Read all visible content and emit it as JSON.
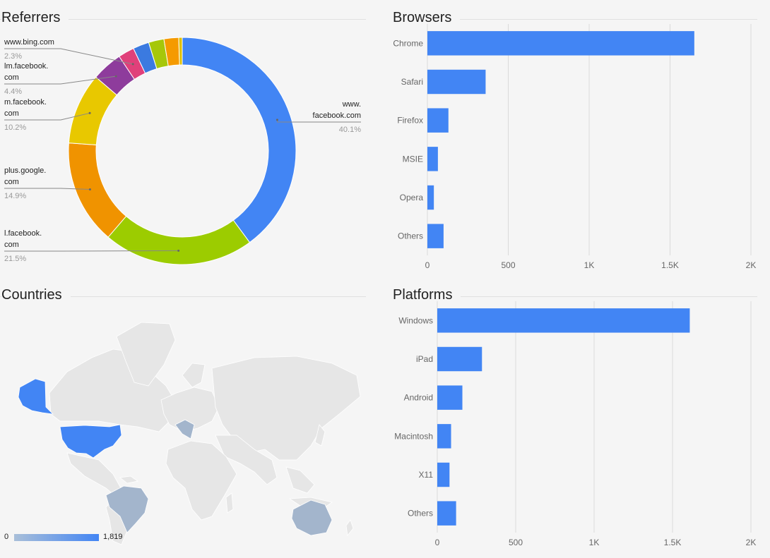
{
  "panels": {
    "referrers": {
      "title": "Referrers"
    },
    "browsers": {
      "title": "Browsers"
    },
    "countries": {
      "title": "Countries"
    },
    "platforms": {
      "title": "Platforms"
    }
  },
  "colors": {
    "bar": "#4285f4",
    "grid": "#dadada",
    "axis_text": "#666666"
  },
  "chart_data": [
    {
      "id": "referrers",
      "type": "pie",
      "title": "Referrers",
      "donut": true,
      "labels": [
        {
          "lines": [
            "www.bing.com"
          ],
          "pct": "2.3%"
        },
        {
          "lines": [
            "lm.facebook.",
            "com"
          ],
          "pct": "4.4%"
        },
        {
          "lines": [
            "m.facebook.",
            "com"
          ],
          "pct": "10.2%"
        },
        {
          "lines": [
            "plus.google.",
            "com"
          ],
          "pct": "14.9%"
        },
        {
          "lines": [
            "l.facebook.",
            "com"
          ],
          "pct": "21.5%"
        },
        {
          "lines": [
            "www.",
            "facebook.com"
          ],
          "pct": "40.1%"
        }
      ],
      "slices": [
        {
          "name": "www.facebook.com",
          "value": 40.1,
          "color": "#4285f4"
        },
        {
          "name": "l.facebook.com",
          "value": 21.5,
          "color": "#9ccc00"
        },
        {
          "name": "plus.google.com",
          "value": 14.9,
          "color": "#f09300"
        },
        {
          "name": "m.facebook.com",
          "value": 10.2,
          "color": "#e8c800"
        },
        {
          "name": "lm.facebook.com",
          "value": 4.4,
          "color": "#8e3c9c"
        },
        {
          "name": "www.bing.com",
          "value": 2.3,
          "color": "#e0407a"
        },
        {
          "name": "",
          "value": 2.3,
          "color": "#3b7ae0"
        },
        {
          "name": "",
          "value": 2.2,
          "color": "#a6c70a"
        },
        {
          "name": "",
          "value": 2.1,
          "color": "#f59a00"
        },
        {
          "name": "",
          "value": 0.5,
          "color": "#e0c000"
        }
      ]
    },
    {
      "id": "browsers",
      "type": "bar",
      "orientation": "horizontal",
      "title": "Browsers",
      "categories": [
        "Chrome",
        "Safari",
        "Firefox",
        "MSIE",
        "Opera",
        "Others"
      ],
      "values": [
        1650,
        360,
        130,
        65,
        40,
        100
      ],
      "xlim": [
        0,
        2000
      ],
      "ticks": [
        0,
        500,
        1000,
        1500,
        2000
      ],
      "tick_labels": [
        "0",
        "500",
        "1K",
        "1.5K",
        "2K"
      ]
    },
    {
      "id": "platforms",
      "type": "bar",
      "orientation": "horizontal",
      "title": "Platforms",
      "categories": [
        "Windows",
        "iPad",
        "Android",
        "Macintosh",
        "X11",
        "Others"
      ],
      "values": [
        1610,
        285,
        160,
        88,
        78,
        120
      ],
      "xlim": [
        0,
        2000
      ],
      "ticks": [
        0,
        500,
        1000,
        1500,
        2000
      ],
      "tick_labels": [
        "0",
        "500",
        "1K",
        "1.5K",
        "2K"
      ]
    },
    {
      "id": "countries",
      "type": "heatmap",
      "title": "Countries",
      "scale": {
        "min": "0",
        "max": "1,819",
        "min_color": "#a9bfd9",
        "max_color": "#4285f4"
      },
      "regions": [
        {
          "name": "United States",
          "color": "#4285f4"
        },
        {
          "name": "Brazil",
          "color": "#a3b5cc"
        },
        {
          "name": "Italy",
          "color": "#a3b5cc"
        },
        {
          "name": "Australia",
          "color": "#a3b5cc"
        }
      ]
    }
  ]
}
